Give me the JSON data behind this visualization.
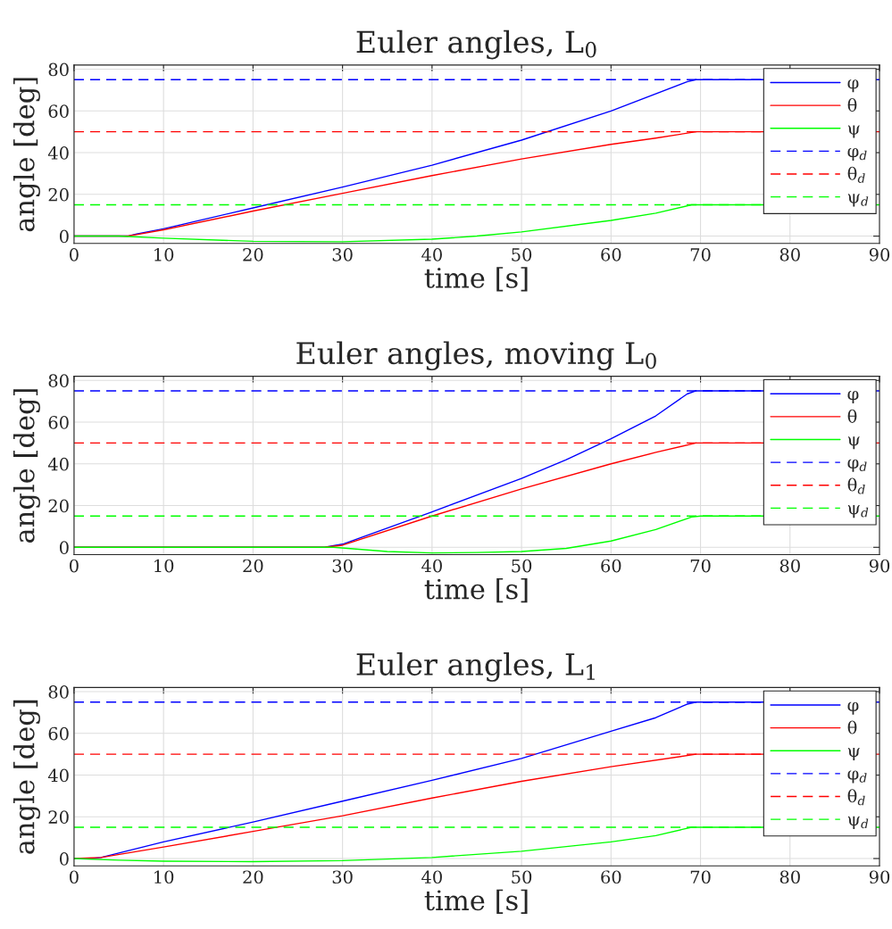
{
  "chart_data": [
    {
      "type": "line",
      "title": "Euler angles, L$_{0}$",
      "xlabel": "time [s]",
      "ylabel": "angle [deg]",
      "xlim": [
        0,
        90
      ],
      "xticks": [
        0,
        10,
        20,
        30,
        40,
        50,
        60,
        70,
        80,
        90
      ],
      "ylim": [
        -3.5,
        82
      ],
      "yticks": [
        0,
        20,
        40,
        60,
        80
      ],
      "grid": true,
      "legend": "top right",
      "series": [
        {
          "name": "φ",
          "color": "#0000ff",
          "x": [
            0,
            6,
            7,
            10,
            20,
            30,
            40,
            50,
            60,
            68.5,
            69.5,
            90
          ],
          "values": [
            0,
            0,
            1,
            3.5,
            13.5,
            23.5,
            34,
            46,
            60,
            74,
            75,
            75
          ]
        },
        {
          "name": "θ",
          "color": "#ff0000",
          "x": [
            0,
            6,
            7,
            10,
            20,
            30,
            40,
            50,
            60,
            65,
            69.5,
            90
          ],
          "values": [
            0,
            0,
            0.7,
            3,
            12,
            20.5,
            29,
            37,
            44,
            47,
            50,
            50
          ]
        },
        {
          "name": "ψ",
          "color": "#00ff00",
          "x": [
            0,
            5,
            10,
            20,
            30,
            40,
            45,
            50,
            60,
            65,
            69,
            90
          ],
          "values": [
            0,
            0,
            -1,
            -2.5,
            -2.7,
            -1.5,
            0,
            2,
            7.5,
            11,
            15,
            15
          ]
        },
        {
          "name": "φ$_{d}$",
          "color": "#0000ff",
          "line_style": "dashed",
          "x": [
            0,
            90
          ],
          "values": [
            75,
            75
          ]
        },
        {
          "name": "θ$_{d}$",
          "color": "#ff0000",
          "line_style": "dashed",
          "x": [
            0,
            90
          ],
          "values": [
            50,
            50
          ]
        },
        {
          "name": "ψ$_{d}$",
          "color": "#00ff00",
          "line_style": "dashed",
          "x": [
            0,
            90
          ],
          "values": [
            15,
            15
          ]
        }
      ]
    },
    {
      "type": "line",
      "title": "Euler angles, moving L$_{0}$",
      "xlabel": "time [s]",
      "ylabel": "angle [deg]",
      "xlim": [
        0,
        90
      ],
      "xticks": [
        0,
        10,
        20,
        30,
        40,
        50,
        60,
        70,
        80,
        90
      ],
      "ylim": [
        -3.5,
        82
      ],
      "yticks": [
        0,
        20,
        40,
        60,
        80
      ],
      "grid": true,
      "legend": "top right",
      "series": [
        {
          "name": "φ",
          "color": "#0000ff",
          "x": [
            0,
            28,
            30,
            40,
            50,
            55,
            60,
            65,
            68.5,
            69.5,
            90
          ],
          "values": [
            0,
            0,
            1.5,
            17,
            33,
            42,
            52,
            63,
            73.5,
            75,
            75
          ]
        },
        {
          "name": "θ",
          "color": "#ff0000",
          "x": [
            0,
            28,
            30,
            40,
            50,
            60,
            65,
            69.5,
            90
          ],
          "values": [
            0,
            0,
            1,
            15,
            28,
            40,
            45.5,
            50,
            50
          ]
        },
        {
          "name": "ψ",
          "color": "#00ff00",
          "x": [
            0,
            29,
            35,
            40,
            45,
            50,
            55,
            60,
            65,
            69,
            70,
            90
          ],
          "values": [
            0,
            0,
            -2,
            -2.7,
            -2.5,
            -2,
            -0.5,
            3,
            8.5,
            14.5,
            15,
            15
          ]
        },
        {
          "name": "φ$_{d}$",
          "color": "#0000ff",
          "line_style": "dashed",
          "x": [
            0,
            90
          ],
          "values": [
            75,
            75
          ]
        },
        {
          "name": "θ$_{d}$",
          "color": "#ff0000",
          "line_style": "dashed",
          "x": [
            0,
            90
          ],
          "values": [
            50,
            50
          ]
        },
        {
          "name": "ψ$_{d}$",
          "color": "#00ff00",
          "line_style": "dashed",
          "x": [
            0,
            90
          ],
          "values": [
            15,
            15
          ]
        }
      ]
    },
    {
      "type": "line",
      "title": "Euler angles, L$_{1}$",
      "xlabel": "time [s]",
      "ylabel": "angle [deg]",
      "xlim": [
        0,
        90
      ],
      "xticks": [
        0,
        10,
        20,
        30,
        40,
        50,
        60,
        70,
        80,
        90
      ],
      "ylim": [
        -3.5,
        82
      ],
      "yticks": [
        0,
        20,
        40,
        60,
        80
      ],
      "grid": true,
      "legend": "top right",
      "series": [
        {
          "name": "φ",
          "color": "#0000ff",
          "x": [
            0,
            2,
            3,
            10,
            20,
            30,
            40,
            50,
            60,
            65,
            68.5,
            69.5,
            90
          ],
          "values": [
            0,
            0,
            0.5,
            8,
            17.5,
            27.5,
            37.5,
            48,
            61,
            67.5,
            74,
            75,
            75
          ]
        },
        {
          "name": "θ",
          "color": "#ff0000",
          "x": [
            0,
            3,
            10,
            20,
            30,
            40,
            50,
            60,
            69.5,
            90
          ],
          "values": [
            0,
            0.5,
            5.5,
            13,
            20.5,
            29,
            37,
            44,
            50,
            50
          ]
        },
        {
          "name": "ψ",
          "color": "#00ff00",
          "x": [
            0,
            5,
            10,
            20,
            30,
            40,
            50,
            60,
            65,
            69,
            90
          ],
          "values": [
            0,
            -0.8,
            -1.3,
            -1.5,
            -1,
            0.5,
            3.5,
            8,
            11,
            15,
            15
          ]
        },
        {
          "name": "φ$_{d}$",
          "color": "#0000ff",
          "line_style": "dashed",
          "x": [
            0,
            90
          ],
          "values": [
            75,
            75
          ]
        },
        {
          "name": "θ$_{d}$",
          "color": "#ff0000",
          "line_style": "dashed",
          "x": [
            0,
            90
          ],
          "values": [
            50,
            50
          ]
        },
        {
          "name": "ψ$_{d}$",
          "color": "#00ff00",
          "line_style": "dashed",
          "x": [
            0,
            90
          ],
          "values": [
            15,
            15
          ]
        }
      ]
    }
  ]
}
